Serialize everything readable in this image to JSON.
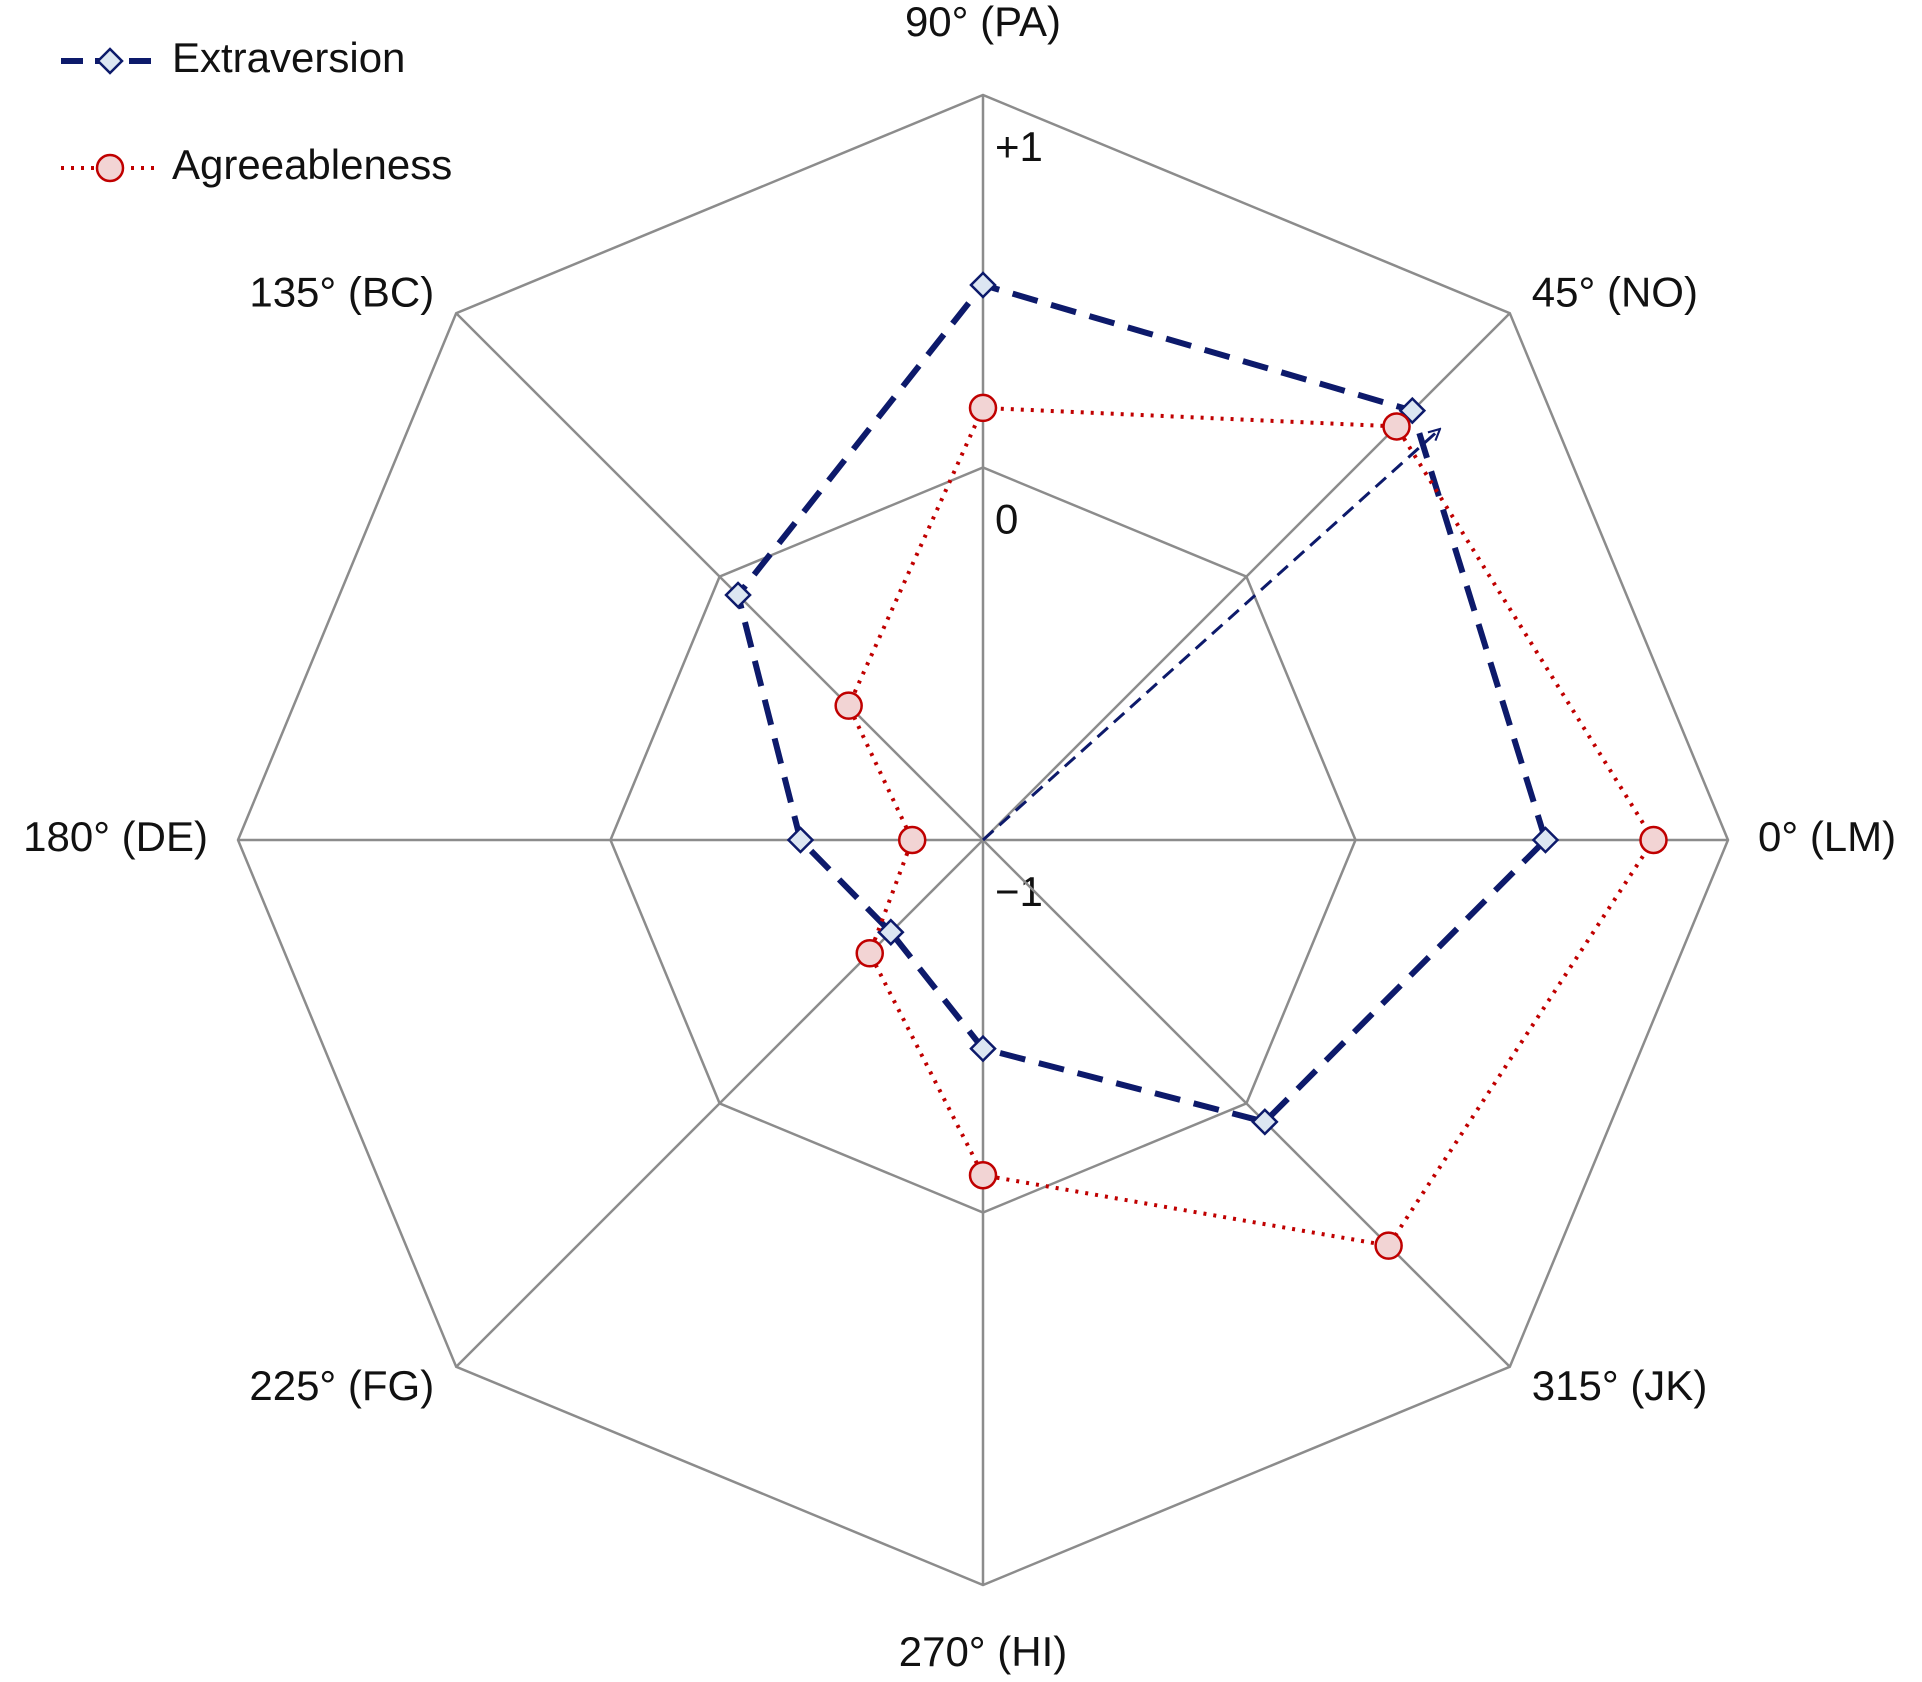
{
  "chart_data": {
    "type": "radar",
    "categories": [
      "0° (LM)",
      "45° (NO)",
      "90° (PA)",
      "135° (BC)",
      "180° (DE)",
      "225° (FG)",
      "270° (HI)",
      "315° (JK)"
    ],
    "series": [
      {
        "name": "Extraversion",
        "color": "#0d1a6b",
        "marker": "diamond",
        "line_style": "dashed",
        "values": [
          0.51,
          0.63,
          0.49,
          -0.07,
          -0.51,
          -0.65,
          -0.44,
          0.07
        ]
      },
      {
        "name": "Agreeableness",
        "color": "#c00000",
        "marker": "circle",
        "line_style": "dotted",
        "values": [
          0.8,
          0.57,
          0.16,
          -0.49,
          -0.81,
          -0.57,
          -0.1,
          0.54
        ]
      }
    ],
    "ylim": [
      -1,
      1
    ],
    "yticks": [
      {
        "value": -1,
        "label": "−1"
      },
      0,
      {
        "value": 1,
        "label": "+1"
      }
    ],
    "grid": true,
    "grid_color": "#8c8c8c",
    "legend": "top-left"
  }
}
